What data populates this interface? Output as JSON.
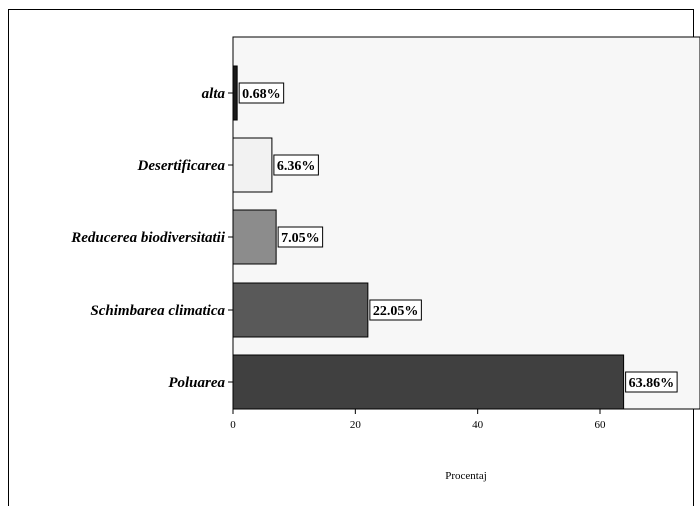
{
  "chart_data": {
    "type": "bar",
    "orientation": "horizontal",
    "categories": [
      "alta",
      "Desertificarea",
      "Reducerea biodiversitatii",
      "Schimbarea climatica",
      "Poluarea"
    ],
    "values": [
      0.68,
      6.36,
      7.05,
      22.05,
      63.86
    ],
    "data_labels": [
      "0.68%",
      "6.36%",
      "7.05%",
      "22.05%",
      "63.86%"
    ],
    "bar_colors": [
      "#1a1a1a",
      "#f2f2f2",
      "#8c8c8c",
      "#595959",
      "#404040"
    ],
    "xlabel": "Procentaj",
    "xlim": [
      0,
      73
    ],
    "xticks": [
      0,
      20,
      40,
      60
    ],
    "plot_background": "#f7f7f7",
    "grid": false,
    "legend": "none"
  }
}
